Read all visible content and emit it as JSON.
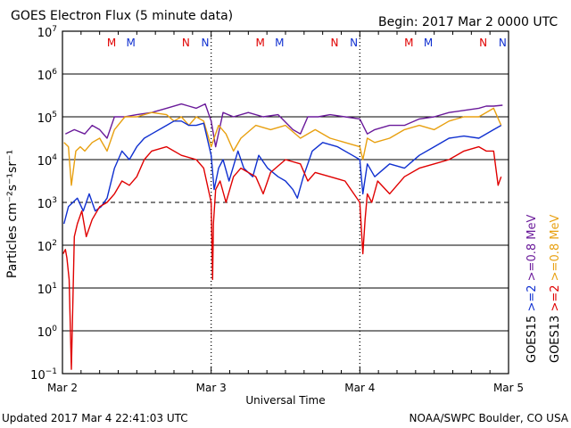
{
  "chart_data": {
    "type": "line",
    "title": "GOES Electron Flux (5 minute data)",
    "begin_label": "Begin: 2017 Mar 2 0000 UTC",
    "xlabel": "Universal Time",
    "ylabel": "Particles cm⁻²s⁻¹sr⁻¹",
    "x_ticks": [
      "Mar 2",
      "Mar 3",
      "Mar 4",
      "Mar 5"
    ],
    "xlim_days": [
      0,
      3
    ],
    "yscale": "log",
    "ylim_exp": [
      -1,
      7
    ],
    "y_tick_exponents": [
      -1,
      0,
      1,
      2,
      3,
      4,
      5,
      6,
      7
    ],
    "threshold_exp": 3,
    "noon_midnight_markers": {
      "labels": [
        {
          "text": "M",
          "day": 0.33,
          "color": "#e00000"
        },
        {
          "text": "M",
          "day": 0.46,
          "color": "#1030d0"
        },
        {
          "text": "N",
          "day": 0.83,
          "color": "#e00000"
        },
        {
          "text": "N",
          "day": 0.96,
          "color": "#1030d0"
        },
        {
          "text": "M",
          "day": 1.33,
          "color": "#e00000"
        },
        {
          "text": "M",
          "day": 1.46,
          "color": "#1030d0"
        },
        {
          "text": "N",
          "day": 1.83,
          "color": "#e00000"
        },
        {
          "text": "N",
          "day": 1.96,
          "color": "#1030d0"
        },
        {
          "text": "M",
          "day": 2.33,
          "color": "#e00000"
        },
        {
          "text": "M",
          "day": 2.46,
          "color": "#1030d0"
        },
        {
          "text": "N",
          "day": 2.83,
          "color": "#e00000"
        },
        {
          "text": "N",
          "day": 2.96,
          "color": "#1030d0"
        }
      ]
    },
    "legend": {
      "col1": [
        {
          "text": "GOES15",
          "color": "#000000"
        },
        {
          "text": ">=2",
          "color": "#1030d0"
        },
        {
          "text": ">=0.8  MeV",
          "color": "#6a1a9a"
        }
      ],
      "col2": [
        {
          "text": "GOES13",
          "color": "#000000"
        },
        {
          "text": ">=2",
          "color": "#e00000"
        },
        {
          "text": ">=0.8  MeV",
          "color": "#e8a010"
        }
      ]
    },
    "series": [
      {
        "name": "GOES15 >=0.8 MeV",
        "color": "#6a1a9a",
        "x": [
          0.02,
          0.08,
          0.15,
          0.2,
          0.25,
          0.3,
          0.35,
          0.42,
          0.5,
          0.6,
          0.7,
          0.8,
          0.85,
          0.9,
          0.96,
          1.0,
          1.03,
          1.08,
          1.15,
          1.25,
          1.35,
          1.45,
          1.55,
          1.6,
          1.65,
          1.72,
          1.8,
          1.9,
          2.0,
          2.05,
          2.1,
          2.2,
          2.3,
          2.4,
          2.5,
          2.6,
          2.7,
          2.8,
          2.85,
          2.9,
          2.96
        ],
        "y": [
          4.6,
          4.7,
          4.6,
          4.8,
          4.7,
          4.5,
          5.0,
          5.0,
          5.05,
          5.1,
          5.2,
          5.3,
          5.25,
          5.2,
          5.3,
          4.9,
          4.3,
          5.1,
          5.0,
          5.1,
          5.0,
          5.05,
          4.7,
          4.6,
          5.0,
          5.0,
          5.05,
          5.0,
          4.95,
          4.6,
          4.7,
          4.8,
          4.8,
          4.95,
          5.0,
          5.1,
          5.15,
          5.2,
          5.25,
          5.25,
          5.27
        ]
      },
      {
        "name": "GOES13 >=0.8 MeV",
        "color": "#e8a010",
        "x": [
          0.01,
          0.04,
          0.06,
          0.09,
          0.12,
          0.15,
          0.2,
          0.25,
          0.3,
          0.35,
          0.42,
          0.5,
          0.6,
          0.7,
          0.75,
          0.8,
          0.85,
          0.9,
          0.95,
          1.0,
          1.02,
          1.05,
          1.1,
          1.15,
          1.2,
          1.3,
          1.4,
          1.5,
          1.6,
          1.7,
          1.8,
          1.9,
          2.0,
          2.02,
          2.05,
          2.1,
          2.2,
          2.3,
          2.4,
          2.5,
          2.6,
          2.7,
          2.8,
          2.9,
          2.95
        ],
        "y": [
          4.4,
          4.3,
          3.4,
          4.2,
          4.3,
          4.2,
          4.4,
          4.5,
          4.2,
          4.7,
          5.0,
          5.0,
          5.1,
          5.05,
          4.9,
          5.0,
          4.8,
          5.0,
          4.9,
          4.3,
          4.5,
          4.8,
          4.6,
          4.2,
          4.5,
          4.8,
          4.7,
          4.8,
          4.5,
          4.7,
          4.5,
          4.4,
          4.3,
          4.0,
          4.5,
          4.4,
          4.5,
          4.7,
          4.8,
          4.7,
          4.9,
          5.0,
          5.0,
          5.2,
          4.8
        ]
      },
      {
        "name": "GOES15 >=2 MeV",
        "color": "#1030d0",
        "x": [
          0.01,
          0.04,
          0.07,
          0.1,
          0.14,
          0.18,
          0.22,
          0.26,
          0.3,
          0.35,
          0.4,
          0.45,
          0.5,
          0.55,
          0.6,
          0.7,
          0.75,
          0.8,
          0.85,
          0.9,
          0.95,
          1.0,
          1.02,
          1.05,
          1.08,
          1.12,
          1.18,
          1.22,
          1.28,
          1.32,
          1.38,
          1.45,
          1.5,
          1.55,
          1.58,
          1.62,
          1.68,
          1.75,
          1.85,
          1.95,
          2.0,
          2.02,
          2.05,
          2.1,
          2.2,
          2.3,
          2.4,
          2.5,
          2.6,
          2.7,
          2.8,
          2.9,
          2.95
        ],
        "y": [
          2.5,
          2.9,
          3.0,
          3.1,
          2.8,
          3.2,
          2.8,
          2.9,
          3.1,
          3.8,
          4.2,
          4.0,
          4.3,
          4.5,
          4.6,
          4.8,
          4.9,
          4.9,
          4.8,
          4.8,
          4.85,
          4.1,
          3.3,
          3.8,
          4.0,
          3.5,
          4.2,
          3.8,
          3.6,
          4.1,
          3.8,
          3.6,
          3.5,
          3.3,
          3.1,
          3.6,
          4.2,
          4.4,
          4.3,
          4.1,
          4.0,
          3.2,
          3.9,
          3.6,
          3.9,
          3.8,
          4.1,
          4.3,
          4.5,
          4.55,
          4.5,
          4.7,
          4.8
        ]
      },
      {
        "name": "GOES13 >=2 MeV",
        "color": "#e00000",
        "x": [
          0.005,
          0.02,
          0.03,
          0.045,
          0.06,
          0.08,
          0.1,
          0.13,
          0.16,
          0.2,
          0.25,
          0.3,
          0.35,
          0.4,
          0.45,
          0.5,
          0.55,
          0.6,
          0.7,
          0.8,
          0.9,
          0.95,
          1.0,
          1.01,
          1.015,
          1.03,
          1.06,
          1.1,
          1.15,
          1.2,
          1.3,
          1.35,
          1.4,
          1.5,
          1.6,
          1.65,
          1.7,
          1.8,
          1.9,
          2.0,
          2.02,
          2.035,
          2.05,
          2.08,
          2.12,
          2.2,
          2.3,
          2.4,
          2.5,
          2.6,
          2.7,
          2.8,
          2.85,
          2.9,
          2.93,
          2.95
        ],
        "y": [
          1.8,
          1.9,
          1.7,
          1.2,
          -0.9,
          2.2,
          2.5,
          2.8,
          2.2,
          2.6,
          2.9,
          3.0,
          3.2,
          3.5,
          3.4,
          3.6,
          4.0,
          4.2,
          4.3,
          4.1,
          4.0,
          3.8,
          3.0,
          1.2,
          2.5,
          3.3,
          3.5,
          3.0,
          3.6,
          3.8,
          3.6,
          3.2,
          3.7,
          4.0,
          3.9,
          3.5,
          3.7,
          3.6,
          3.5,
          3.0,
          1.8,
          2.6,
          3.2,
          3.0,
          3.5,
          3.2,
          3.6,
          3.8,
          3.9,
          4.0,
          4.2,
          4.3,
          4.2,
          4.2,
          3.4,
          3.6
        ]
      }
    ]
  },
  "footer": {
    "updated": "Updated 2017 Mar  4 22:41:03 UTC",
    "credit": "NOAA/SWPC Boulder, CO USA"
  }
}
